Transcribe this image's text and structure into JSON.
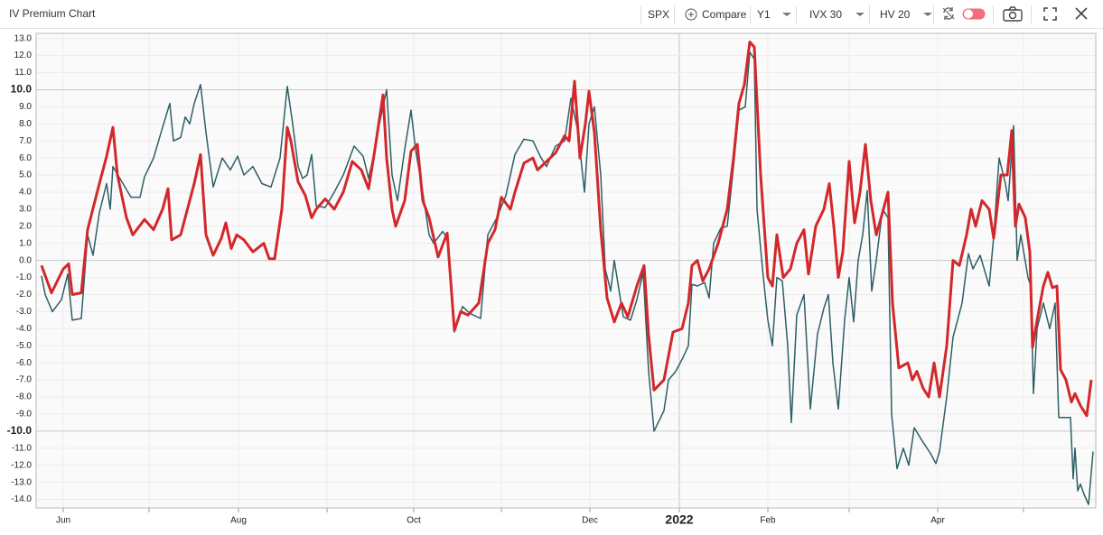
{
  "header": {
    "title": "IV Premium Chart",
    "toolbar": {
      "symbol": "SPX",
      "compare": "Compare",
      "period": "Y1",
      "series_1": "IVX 30",
      "series_2": "HV 20"
    }
  },
  "chart_data": {
    "type": "line",
    "xlim": [
      8,
      242.6
    ],
    "xticks": [
      {
        "value": 14,
        "label": "Jun"
      },
      {
        "value": 52.8,
        "label": "Aug"
      },
      {
        "value": 91.6,
        "label": "Oct"
      },
      {
        "value": 130.6,
        "label": "Dec"
      },
      {
        "value": 150.4,
        "label": "2022"
      },
      {
        "value": 170,
        "label": "Feb"
      },
      {
        "value": 207.6,
        "label": "Apr"
      }
    ],
    "xminor_ticks": [
      33,
      72.4,
      111,
      188,
      226.6
    ],
    "ylim": [
      -14.5,
      13.3
    ],
    "yticks": [
      {
        "value": 13,
        "label": "13.0"
      },
      {
        "value": 12,
        "label": "12.0"
      },
      {
        "value": 11,
        "label": "11.0"
      },
      {
        "value": 10,
        "label": "10.0"
      },
      {
        "value": 9,
        "label": "9.0"
      },
      {
        "value": 8,
        "label": "8.0"
      },
      {
        "value": 7,
        "label": "7.0"
      },
      {
        "value": 6,
        "label": "6.0"
      },
      {
        "value": 5,
        "label": "5.0"
      },
      {
        "value": 4,
        "label": "4.0"
      },
      {
        "value": 3,
        "label": "3.0"
      },
      {
        "value": 2,
        "label": "2.0"
      },
      {
        "value": 1,
        "label": "1.0"
      },
      {
        "value": 0,
        "label": "0.0"
      },
      {
        "value": -1,
        "label": "-1.0"
      },
      {
        "value": -2,
        "label": "-2.0"
      },
      {
        "value": -3,
        "label": "-3.0"
      },
      {
        "value": -4,
        "label": "-4.0"
      },
      {
        "value": -5,
        "label": "-5.0"
      },
      {
        "value": -6,
        "label": "-6.0"
      },
      {
        "value": -7,
        "label": "-7.0"
      },
      {
        "value": -8,
        "label": "-8.0"
      },
      {
        "value": -9,
        "label": "-9.0"
      },
      {
        "value": -10,
        "label": "-10.0"
      },
      {
        "value": -11,
        "label": "-11.0"
      },
      {
        "value": -12,
        "label": "-12.0"
      },
      {
        "value": -13,
        "label": "-13.0"
      },
      {
        "value": -14,
        "label": "-14.0"
      }
    ],
    "bold_yticks": [
      10,
      -10
    ],
    "dark_grid_yticks": [
      10,
      0,
      -10
    ],
    "grid": true,
    "series": [
      {
        "color": "#2d5f66",
        "line_width": 1.5,
        "x": [
          9.2,
          10,
          11.6,
          13.6,
          15,
          16,
          18,
          19.4,
          20.6,
          22,
          23.6,
          24.4,
          25,
          27,
          29,
          31,
          32,
          34,
          36,
          37.6,
          38.4,
          40,
          41,
          42,
          43,
          44.4,
          45.6,
          47.2,
          49.2,
          51,
          52.6,
          54,
          56,
          58,
          60,
          62,
          63.6,
          64.8,
          66,
          67,
          68,
          69,
          70,
          72,
          74,
          76,
          78.4,
          80.4,
          81.6,
          83,
          84,
          85.6,
          86.8,
          88,
          89.6,
          91,
          92,
          93.6,
          95,
          96,
          98,
          99,
          100.6,
          102.4,
          104,
          106.4,
          108,
          110,
          112,
          114,
          116,
          118,
          119.6,
          121,
          123,
          125,
          126.4,
          128,
          129.4,
          130.4,
          131.6,
          133,
          134,
          135.2,
          136,
          137.2,
          138,
          139.6,
          141,
          142.4,
          143.6,
          144.8,
          147,
          148,
          149.6,
          151,
          152.4,
          153.2,
          154.4,
          156,
          157,
          158,
          159.6,
          161,
          162.4,
          163.6,
          165,
          166,
          167,
          167.6,
          169,
          170,
          171,
          172,
          173.2,
          174.4,
          175.2,
          176.4,
          178,
          179.4,
          181,
          182.4,
          183.4,
          184.4,
          185.6,
          187,
          188,
          189,
          190,
          191,
          192,
          193,
          194,
          195.4,
          196.6,
          197.4,
          198.6,
          200,
          201.2,
          202.4,
          204,
          206,
          207.2,
          208,
          209.6,
          211,
          213,
          214.4,
          215.4,
          217,
          219,
          220,
          221.2,
          222.6,
          223.2,
          224.4,
          225.2,
          226,
          227.6,
          228.2,
          228.8,
          229.6,
          231,
          232.4,
          233.6,
          234.4,
          237,
          237.6,
          238,
          238.6,
          239.2,
          240,
          241,
          242
        ],
        "values": [
          -0.9,
          -2,
          -3,
          -2.3,
          -0.8,
          -3.5,
          -3.4,
          1.5,
          0.3,
          2.8,
          4.5,
          3,
          5.5,
          4.6,
          3.7,
          3.7,
          4.9,
          6,
          7.8,
          9.2,
          7,
          7.2,
          8.4,
          8,
          9.2,
          10.3,
          7.5,
          4.3,
          6,
          5.3,
          6.1,
          5,
          5.5,
          4.5,
          4.3,
          6,
          10.2,
          8,
          5.5,
          4.8,
          5,
          6.2,
          3.2,
          3.1,
          4,
          5,
          6.7,
          6.1,
          4.8,
          6.5,
          8,
          10,
          5,
          3.5,
          6.5,
          8.8,
          6.5,
          4,
          1.5,
          1,
          1.7,
          1.3,
          -4.2,
          -2.7,
          -3.1,
          -3.4,
          1.5,
          2.5,
          3.8,
          6.2,
          7.1,
          7,
          6.1,
          5.5,
          6.7,
          7,
          9.5,
          7.5,
          4,
          8,
          9,
          5,
          -0.5,
          -1.8,
          0,
          -2,
          -3.3,
          -3.5,
          -2.3,
          -0.7,
          -6.5,
          -10,
          -8.8,
          -7,
          -6.5,
          -5.8,
          -5,
          -1.4,
          -1.5,
          -1.3,
          -2.2,
          1,
          1.9,
          2,
          5.5,
          8.8,
          9,
          12.2,
          11.8,
          3,
          -1,
          -3.5,
          -5,
          -1,
          -1.2,
          -5,
          -9.5,
          -3.2,
          -2,
          -8.7,
          -4.3,
          -2.8,
          -2,
          -6,
          -8.7,
          -3.5,
          -1,
          -3.6,
          0,
          1.5,
          4.1,
          -1.8,
          0,
          3,
          2.5,
          -9,
          -12.2,
          -11,
          -12,
          -9.8,
          -10.5,
          -11.3,
          -11.9,
          -11.2,
          -8,
          -4.5,
          -2.5,
          0.4,
          -0.5,
          0.3,
          -1.5,
          1.4,
          6,
          4.5,
          3.5,
          7.9,
          0,
          1.5,
          -1,
          -1.5,
          -7.8,
          -4,
          -2.5,
          -4,
          -2.5,
          -9.2,
          -9.2,
          -12.8,
          -11,
          -13.5,
          -13.1,
          -13.7,
          -14.3,
          -11.2
        ]
      },
      {
        "color": "#d3282b",
        "line_width": 3,
        "x": [
          9.2,
          11.4,
          14,
          15.2,
          16,
          18,
          19.4,
          22,
          23.6,
          25,
          26,
          28,
          29.4,
          32,
          34,
          36,
          37.2,
          38,
          40,
          41,
          43,
          44.4,
          45.6,
          47.2,
          49,
          50,
          51.2,
          52.4,
          54,
          56,
          58.4,
          59.6,
          60.8,
          62.4,
          63.6,
          64.4,
          66,
          67.6,
          69,
          70,
          72,
          74,
          76,
          78,
          80,
          81.6,
          83,
          84.8,
          85.6,
          86.8,
          87.6,
          89.6,
          91,
          92.4,
          93.6,
          95,
          97,
          99,
          100.6,
          102,
          103.6,
          106,
          108,
          109.6,
          111,
          113,
          114,
          116,
          118,
          119,
          121,
          123,
          125,
          126,
          127.2,
          128.4,
          129.6,
          130.4,
          131.6,
          133,
          134.4,
          136,
          137.6,
          139,
          141,
          142.6,
          143.6,
          144.8,
          147,
          149,
          151,
          152.4,
          153.2,
          154.4,
          155.6,
          157,
          159,
          161,
          162.4,
          163.6,
          164.8,
          166,
          167,
          168.4,
          170,
          171,
          172,
          173.4,
          175,
          176.4,
          178,
          179,
          180.6,
          182.4,
          183.6,
          184.6,
          185.6,
          186.6,
          188,
          189.2,
          190.4,
          191.6,
          192.8,
          194,
          195.6,
          196.6,
          197.6,
          199,
          201,
          202,
          203,
          204.4,
          205.6,
          206.8,
          208,
          209.6,
          211,
          212.4,
          214,
          215,
          216,
          217.4,
          219,
          220,
          221.6,
          223,
          224,
          224.8,
          225.6,
          227,
          228,
          228.6,
          229.6,
          231,
          232,
          233,
          234,
          234.8,
          236,
          237.2,
          238,
          239.2,
          240.6,
          241.6
        ],
        "values": [
          -0.3,
          -1.9,
          -0.5,
          -0.2,
          -2,
          -1.9,
          1.8,
          4.5,
          6.1,
          7.8,
          5,
          2.5,
          1.5,
          2.4,
          1.8,
          3,
          4.2,
          1.2,
          1.5,
          2.5,
          4.5,
          6.2,
          1.5,
          0.3,
          1.3,
          2.2,
          0.7,
          1.5,
          1.2,
          0.5,
          1,
          0.1,
          0.1,
          3,
          7.8,
          7,
          4.6,
          3.8,
          2.5,
          3,
          3.6,
          3,
          4,
          5.8,
          5.3,
          4.2,
          6.5,
          9.7,
          6,
          3,
          2,
          3.5,
          6.4,
          6.8,
          3.5,
          2.5,
          0.2,
          1.6,
          -4.1,
          -3,
          -3.2,
          -2.5,
          1,
          1.8,
          3.7,
          3,
          4,
          5.7,
          6,
          5.3,
          5.8,
          6.3,
          7.3,
          7,
          10.5,
          6,
          8,
          9.9,
          7.5,
          1.8,
          -2.2,
          -3.6,
          -2.5,
          -3.3,
          -1.5,
          -0.3,
          -4.4,
          -7.6,
          -7,
          -4.2,
          -4,
          -2.5,
          -0.3,
          0,
          -1.2,
          -0.5,
          1,
          3,
          6,
          9.2,
          10.3,
          12.8,
          12.5,
          5,
          -1,
          -1.5,
          1.5,
          -1,
          -0.5,
          1,
          1.8,
          -0.8,
          2,
          3,
          4.5,
          2,
          -1,
          0.5,
          5.8,
          2.2,
          4,
          6.8,
          3.5,
          1.5,
          3,
          4,
          -2.5,
          -6.3,
          -6,
          -7,
          -6.5,
          -7.5,
          -8,
          -6,
          -8,
          -5,
          0,
          -0.3,
          1.5,
          3,
          2,
          3.5,
          3,
          1.3,
          5,
          5,
          7.6,
          2,
          3.3,
          2.5,
          0.5,
          -5.1,
          -3.5,
          -1.5,
          -0.7,
          -1.6,
          -1.5,
          -6.4,
          -7,
          -8.3,
          -7.8,
          -8.5,
          -9.1,
          -7
        ]
      }
    ]
  }
}
